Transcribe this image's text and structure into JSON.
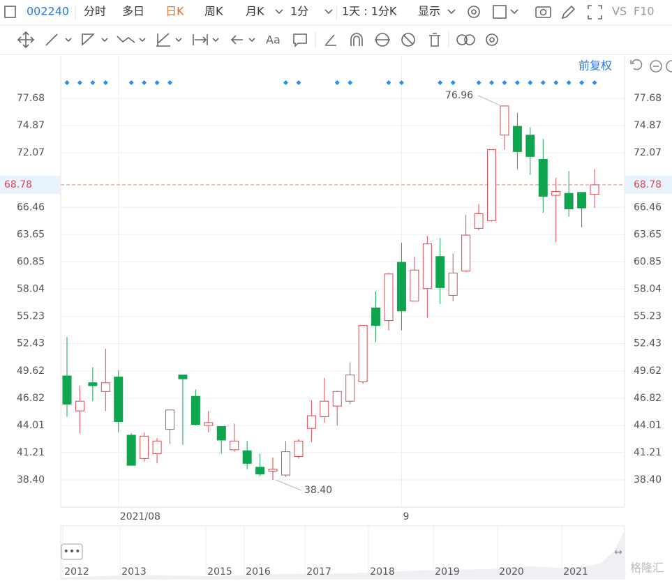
{
  "toolbar": {
    "code": "002240",
    "periods": [
      "分时",
      "多日",
      "日K",
      "周K",
      "月K",
      "1分"
    ],
    "range": "1天 : 1分K",
    "display": "显示",
    "compare": "VS",
    "f10": "F10"
  },
  "drawing_tools": {
    "text_tool": "Aa"
  },
  "adjust": "前复权",
  "watermark": "格隆汇",
  "chart_data": {
    "type": "candlestick",
    "categories": [
      null,
      null,
      null,
      null,
      "2021/08",
      null,
      null,
      null,
      null,
      null,
      null,
      null,
      null,
      null,
      null,
      null,
      null,
      null,
      null,
      null,
      null,
      null,
      null,
      null,
      null,
      null,
      "9",
      null,
      null,
      null,
      null,
      null,
      null,
      null,
      null,
      null,
      null,
      null,
      null,
      null,
      null,
      null
    ],
    "open": [
      49.1,
      45.5,
      48.4,
      47.5,
      49.0,
      43.0,
      40.6,
      41.1,
      43.6,
      49.2,
      47.0,
      44.0,
      43.9,
      41.5,
      41.4,
      39.7,
      39.3,
      38.9,
      40.8,
      43.7,
      44.9,
      46.0,
      46.5,
      48.5,
      56.1,
      54.8,
      60.8,
      56.8,
      58.1,
      61.4,
      57.4,
      59.9,
      64.3,
      65.1,
      73.9,
      74.8,
      73.9,
      71.4,
      67.7,
      67.9,
      68.0,
      67.8
    ],
    "high": [
      53.1,
      48.1,
      50.0,
      51.9,
      49.7,
      43.2,
      43.3,
      42.7,
      45.6,
      49.2,
      47.7,
      45.5,
      43.9,
      44.2,
      42.4,
      41.1,
      40.7,
      42.4,
      42.6,
      46.6,
      48.9,
      47.6,
      50.5,
      54.3,
      57.8,
      59.7,
      62.8,
      61.4,
      63.5,
      63.3,
      61.7,
      65.7,
      66.8,
      72.4,
      76.96,
      76.2,
      74.7,
      73.5,
      69.5,
      70.2,
      68.0,
      70.4
    ],
    "low": [
      44.9,
      43.2,
      46.5,
      45.5,
      43.3,
      39.9,
      40.3,
      40.1,
      42.1,
      42.0,
      44.0,
      43.3,
      41.1,
      41.3,
      39.5,
      38.8,
      38.4,
      38.7,
      40.6,
      42.3,
      44.3,
      44.0,
      46.2,
      48.3,
      52.6,
      53.8,
      53.8,
      56.8,
      55.1,
      56.5,
      56.8,
      59.8,
      64.1,
      65.0,
      72.4,
      70.4,
      69.8,
      65.9,
      62.9,
      65.5,
      64.4,
      66.4
    ],
    "close": [
      46.2,
      46.5,
      48.1,
      48.4,
      44.4,
      39.9,
      42.9,
      42.4,
      45.6,
      48.8,
      44.1,
      44.3,
      42.5,
      42.4,
      40.1,
      39.0,
      39.5,
      41.3,
      42.4,
      45.0,
      46.5,
      47.5,
      49.2,
      54.3,
      54.3,
      59.6,
      55.8,
      60.0,
      62.7,
      58.2,
      59.7,
      63.6,
      65.8,
      72.4,
      76.9,
      72.2,
      71.7,
      67.6,
      68.1,
      66.3,
      66.4,
      68.78
    ],
    "up_color": "#e0474c",
    "down_color": "#0fa54f",
    "ylim": [
      35.6,
      80.27
    ],
    "yticks": [
      {
        "value": 38.4,
        "label": "38.40"
      },
      41.21,
      44.01,
      46.82,
      49.62,
      52.43,
      55.23,
      58.04,
      60.85,
      63.65,
      66.46,
      72.07,
      74.87,
      77.68
    ],
    "grid": true,
    "last_price": 68.78,
    "high_label": 76.96,
    "low_label": {
      "value": 38.4,
      "label": "38.40"
    }
  },
  "navigator": {
    "years": [
      "2012",
      "2013",
      "2015",
      "2016",
      "2017",
      "2018",
      "2019",
      "2020",
      "2021"
    ]
  }
}
